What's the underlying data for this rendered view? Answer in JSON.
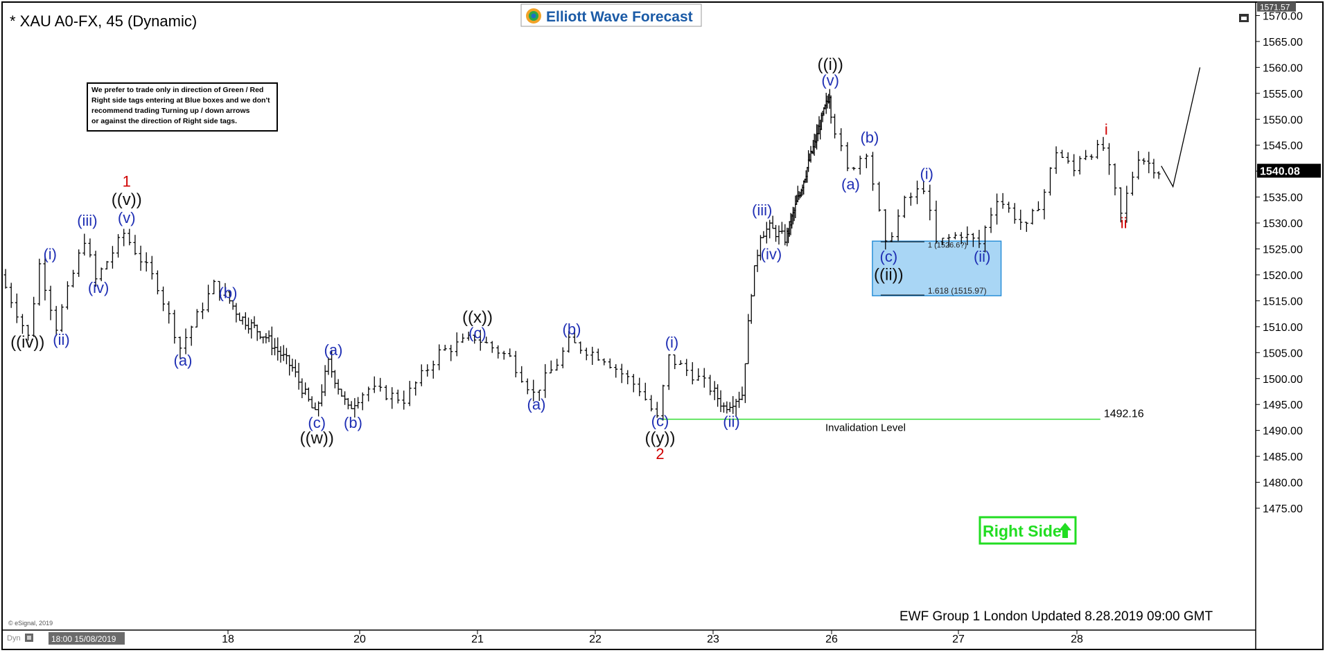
{
  "header": {
    "symbol_title": "* XAU A0-FX, 45 (Dynamic)",
    "brand": "Elliott Wave Forecast"
  },
  "note_box": {
    "lines": [
      "We prefer to trade only in direction of Green / Red",
      "Right side tags entering at Blue boxes and we don't",
      "recommend trading Turning up / down arrows",
      "or against the direction of Right side tags."
    ]
  },
  "footer": {
    "updated": "EWF Group 1 London Updated 8.28.2019 09:00 GMT",
    "copyright": "© eSignal, 2019",
    "start_stamp": "18:00 15/08/2019",
    "dyn_label": "Dyn"
  },
  "colors": {
    "wave_blue": "#1f2fb4",
    "wave_red": "#d00000",
    "invalidation_green": "#33dd33",
    "right_side_green": "#22dd22",
    "blue_box_fill": "#a9d6f5",
    "blue_box_stroke": "#2a8fd8"
  },
  "chart_data": {
    "type": "candlestick-ohlc",
    "ylim": [
      1472,
      1572
    ],
    "y_ticks": [
      "1475.00",
      "1480.00",
      "1485.00",
      "1490.00",
      "1495.00",
      "1500.00",
      "1505.00",
      "1510.00",
      "1515.00",
      "1520.00",
      "1525.00",
      "1530.00",
      "1535.00",
      "1540.00",
      "1545.00",
      "1550.00",
      "1555.00",
      "1560.00",
      "1565.00",
      "1570.00"
    ],
    "top_price_label": "1571.57",
    "last_price_label": "1540.08",
    "last_price": 1540.08,
    "x_ticks": [
      {
        "label": "18",
        "day": 18.0
      },
      {
        "label": "20",
        "day": 20.0
      },
      {
        "label": "21",
        "day": 21.0
      },
      {
        "label": "22",
        "day": 22.0
      },
      {
        "label": "23",
        "day": 23.0
      },
      {
        "label": "26",
        "day": 26.0
      },
      {
        "label": "27",
        "day": 27.0
      },
      {
        "label": "28",
        "day": 28.0
      }
    ],
    "price_path": [
      [
        16.0,
        1520
      ],
      [
        16.25,
        1508
      ],
      [
        16.35,
        1522
      ],
      [
        16.5,
        1510
      ],
      [
        16.75,
        1527
      ],
      [
        16.85,
        1519
      ],
      [
        17.1,
        1528
      ],
      [
        17.4,
        1518
      ],
      [
        17.6,
        1506
      ],
      [
        17.9,
        1518
      ],
      [
        18.2,
        1512
      ],
      [
        18.6,
        1508
      ],
      [
        19.0,
        1502
      ],
      [
        19.35,
        1493
      ],
      [
        19.55,
        1503
      ],
      [
        19.85,
        1494
      ],
      [
        20.1,
        1498
      ],
      [
        20.4,
        1496
      ],
      [
        20.7,
        1505
      ],
      [
        21.0,
        1508
      ],
      [
        21.3,
        1504
      ],
      [
        21.5,
        1497
      ],
      [
        21.7,
        1503
      ],
      [
        21.8,
        1507
      ],
      [
        22.1,
        1504
      ],
      [
        22.4,
        1498
      ],
      [
        22.55,
        1492.2
      ],
      [
        22.65,
        1504
      ],
      [
        22.9,
        1500
      ],
      [
        23.2,
        1494.5
      ],
      [
        23.5,
        1497
      ],
      [
        23.65,
        1517
      ],
      [
        23.8,
        1528
      ],
      [
        23.95,
        1529
      ],
      [
        24.2,
        1527
      ],
      [
        25.95,
        1555
      ],
      [
        26.05,
        1548
      ],
      [
        26.15,
        1540
      ],
      [
        26.3,
        1544
      ],
      [
        26.45,
        1525.5
      ],
      [
        26.6,
        1534
      ],
      [
        26.75,
        1537
      ],
      [
        26.85,
        1526
      ],
      [
        27.05,
        1528
      ],
      [
        27.2,
        1526
      ],
      [
        27.35,
        1535
      ],
      [
        27.6,
        1529
      ],
      [
        27.75,
        1536
      ],
      [
        27.85,
        1544
      ],
      [
        28.0,
        1540
      ],
      [
        28.05,
        1543
      ],
      [
        28.25,
        1544.5
      ],
      [
        28.4,
        1531.5
      ],
      [
        28.55,
        1543
      ],
      [
        28.72,
        1540
      ]
    ],
    "projection": [
      [
        28.72,
        1541
      ],
      [
        28.82,
        1537
      ],
      [
        29.05,
        1560
      ]
    ],
    "invalidation": {
      "level": 1492.16,
      "label": "1492.16",
      "text": "Invalidation Level",
      "from_day": 22.55,
      "to_day": 28.2
    },
    "blue_box": {
      "top": 1526.5,
      "bottom": 1515.97,
      "from_day": 26.3,
      "to_day": 27.36,
      "ext1_label": "1 (1526.6?)",
      "ext2_label": "1.618 (1515.97)"
    },
    "right_side_tag": "Right Side",
    "wave_labels": [
      {
        "text": "((iv))",
        "day": 16.22,
        "price": 1506.0,
        "color": "black"
      },
      {
        "text": "(i)",
        "day": 16.42,
        "price": 1523.0,
        "color": "blue"
      },
      {
        "text": "(ii)",
        "day": 16.52,
        "price": 1506.5,
        "color": "blue"
      },
      {
        "text": "(iii)",
        "day": 16.75,
        "price": 1529.5,
        "color": "blue"
      },
      {
        "text": "(iv)",
        "day": 16.85,
        "price": 1516.5,
        "color": "blue"
      },
      {
        "text": "(v)",
        "day": 17.1,
        "price": 1530.0,
        "color": "blue"
      },
      {
        "text": "((v))",
        "day": 17.1,
        "price": 1533.5,
        "color": "black"
      },
      {
        "text": "1",
        "day": 17.1,
        "price": 1537.0,
        "color": "red"
      },
      {
        "text": "(a)",
        "day": 17.6,
        "price": 1502.5,
        "color": "blue"
      },
      {
        "text": "(b)",
        "day": 18.0,
        "price": 1515.5,
        "color": "blue"
      },
      {
        "text": "(c)",
        "day": 19.35,
        "price": 1490.5,
        "color": "blue"
      },
      {
        "text": "((w))",
        "day": 19.35,
        "price": 1487.5,
        "color": "black"
      },
      {
        "text": "(a)",
        "day": 19.6,
        "price": 1504.5,
        "color": "blue"
      },
      {
        "text": "(b)",
        "day": 19.9,
        "price": 1490.5,
        "color": "blue"
      },
      {
        "text": "(c)",
        "day": 21.0,
        "price": 1507.8,
        "color": "blue"
      },
      {
        "text": "((x))",
        "day": 21.0,
        "price": 1510.8,
        "color": "black"
      },
      {
        "text": "(a)",
        "day": 21.5,
        "price": 1494.0,
        "color": "blue"
      },
      {
        "text": "(b)",
        "day": 21.8,
        "price": 1508.5,
        "color": "blue"
      },
      {
        "text": "(c)",
        "day": 22.55,
        "price": 1490.8,
        "color": "blue"
      },
      {
        "text": "((y))",
        "day": 22.55,
        "price": 1487.5,
        "color": "black"
      },
      {
        "text": "2",
        "day": 22.55,
        "price": 1484.5,
        "color": "red"
      },
      {
        "text": "(i)",
        "day": 22.65,
        "price": 1506.0,
        "color": "blue"
      },
      {
        "text": "(ii)",
        "day": 23.3,
        "price": 1490.7,
        "color": "blue"
      },
      {
        "text": "(iii)",
        "day": 23.8,
        "price": 1531.5,
        "color": "blue"
      },
      {
        "text": "(iv)",
        "day": 23.95,
        "price": 1523.0,
        "color": "blue"
      },
      {
        "text": "(v)",
        "day": 25.95,
        "price": 1556.5,
        "color": "blue"
      },
      {
        "text": "((i))",
        "day": 25.95,
        "price": 1559.5,
        "color": "black"
      },
      {
        "text": "(a)",
        "day": 26.15,
        "price": 1536.5,
        "color": "blue"
      },
      {
        "text": "(b)",
        "day": 26.3,
        "price": 1545.5,
        "color": "blue"
      },
      {
        "text": "(i)",
        "day": 26.75,
        "price": 1538.5,
        "color": "blue"
      },
      {
        "text": "(c)",
        "day": 26.45,
        "price": 1522.5,
        "color": "blue"
      },
      {
        "text": "((ii))",
        "day": 26.45,
        "price": 1519.0,
        "color": "black"
      },
      {
        "text": "(ii)",
        "day": 27.2,
        "price": 1522.5,
        "color": "blue"
      },
      {
        "text": "i",
        "day": 28.25,
        "price": 1547.0,
        "color": "red"
      },
      {
        "text": "ii",
        "day": 28.4,
        "price": 1529.0,
        "color": "red"
      }
    ]
  }
}
